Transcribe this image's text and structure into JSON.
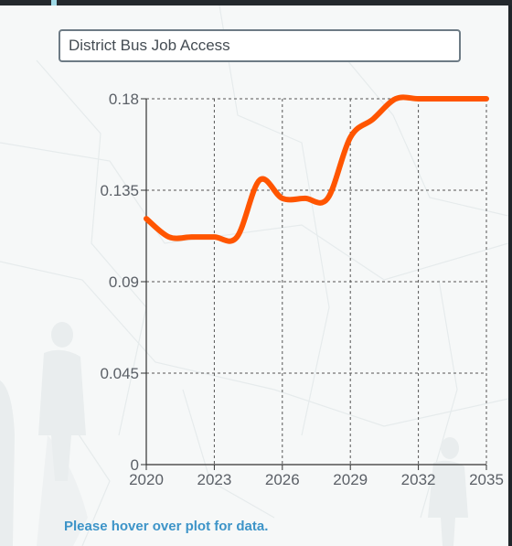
{
  "dropdown": {
    "selected": "District Bus Job Access"
  },
  "hint_text": "Please hover over plot for data.",
  "colors": {
    "line": "#ff5500",
    "grid": "#555555",
    "axis": "#333333",
    "hint": "#3d94c8"
  },
  "chart_data": {
    "type": "line",
    "title": "",
    "xlabel": "",
    "ylabel": "",
    "xlim": [
      2020,
      2035
    ],
    "ylim": [
      0,
      0.18
    ],
    "x_ticks": [
      2020,
      2023,
      2026,
      2029,
      2032,
      2035
    ],
    "y_ticks": [
      0,
      0.045,
      0.09,
      0.135,
      0.18
    ],
    "x_tick_labels": [
      "2020",
      "2023",
      "2026",
      "2029",
      "2032",
      "2035"
    ],
    "y_tick_labels": [
      "0",
      "0.045",
      "0.09",
      "0.135",
      "0.18"
    ],
    "grid": true,
    "series": [
      {
        "x": [
          2020,
          2021,
          2022,
          2023,
          2024,
          2025,
          2026,
          2027,
          2028,
          2029,
          2030,
          2031,
          2032,
          2033,
          2034,
          2035
        ],
        "values": [
          0.121,
          0.112,
          0.112,
          0.112,
          0.112,
          0.14,
          0.131,
          0.131,
          0.131,
          0.161,
          0.17,
          0.18,
          0.18,
          0.18,
          0.18,
          0.18
        ]
      }
    ]
  }
}
